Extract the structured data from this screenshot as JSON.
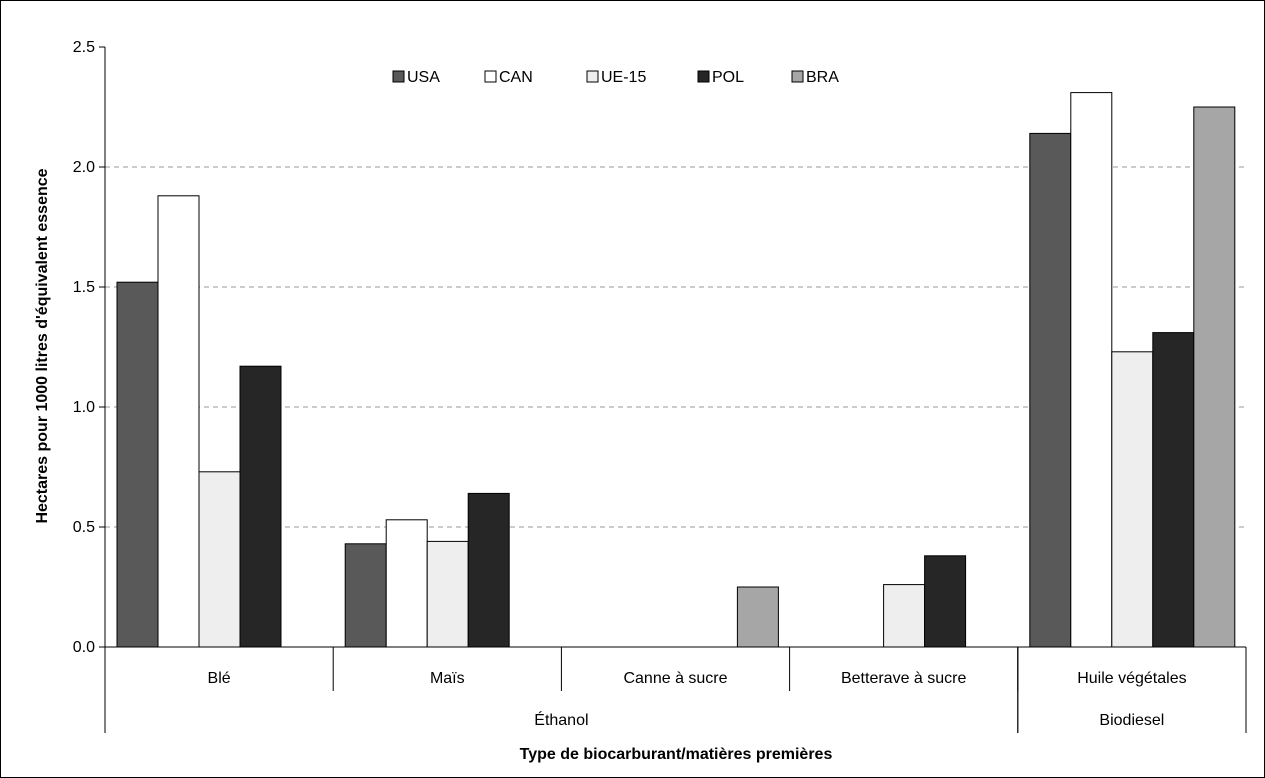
{
  "chart_data": {
    "type": "bar",
    "xlabel": "Type de biocarburant/matières premières",
    "ylabel": "Hectares pour 1000 litres d'équivalent essence",
    "ylim": [
      0,
      2.5
    ],
    "yticks": [
      "0.0",
      "0.5",
      "1.0",
      "1.5",
      "2.0",
      "2.5"
    ],
    "ytick_values": [
      0,
      0.5,
      1.0,
      1.5,
      2.0,
      2.5
    ],
    "grid": "horizontal dashed",
    "legend_position": "top-center",
    "categories": [
      "Blé",
      "Maïs",
      "Canne à sucre",
      "Betterave à sucre",
      "Huile végétales"
    ],
    "groups": [
      {
        "label": "Éthanol",
        "categories": [
          "Blé",
          "Maïs",
          "Canne à sucre",
          "Betterave à sucre"
        ]
      },
      {
        "label": "Biodiesel",
        "categories": [
          "Huile végétales"
        ]
      }
    ],
    "series": [
      {
        "name": "USA",
        "color": "#595959",
        "values": [
          1.52,
          0.43,
          null,
          null,
          2.14
        ]
      },
      {
        "name": "CAN",
        "color": "#ffffff",
        "values": [
          1.88,
          0.53,
          null,
          null,
          2.31
        ]
      },
      {
        "name": "UE-15",
        "color": "#eeeeee",
        "values": [
          0.73,
          0.44,
          null,
          0.26,
          1.23
        ]
      },
      {
        "name": "POL",
        "color": "#262626",
        "values": [
          1.17,
          0.64,
          null,
          0.38,
          1.31
        ]
      },
      {
        "name": "BRA",
        "color": "#a6a6a6",
        "values": [
          null,
          null,
          null,
          null,
          2.25
        ]
      }
    ],
    "extra_bars": [
      {
        "category": "Canne à sucre",
        "series": "BRA",
        "value": 0.25
      }
    ]
  }
}
